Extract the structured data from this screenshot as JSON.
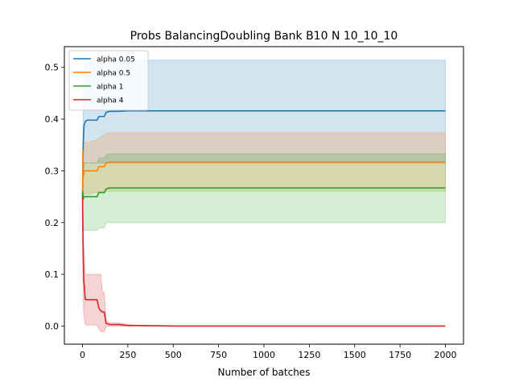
{
  "chart_data": {
    "type": "line",
    "title": "Probs BalancingDoubling Bank B10 N 10_10_10",
    "xlabel": "Number of batches",
    "ylabel": "",
    "xlim": [
      -100,
      2100
    ],
    "ylim": [
      -0.035,
      0.54
    ],
    "x_ticks": [
      0,
      250,
      500,
      750,
      1000,
      1250,
      1500,
      1750,
      2000
    ],
    "x_tick_labels": [
      "0",
      "250",
      "500",
      "750",
      "1000",
      "1250",
      "1500",
      "1750",
      "2000"
    ],
    "y_ticks": [
      0.0,
      0.1,
      0.2,
      0.3,
      0.4,
      0.5
    ],
    "y_tick_labels": [
      "0.0",
      "0.1",
      "0.2",
      "0.3",
      "0.4",
      "0.5"
    ],
    "grid": false,
    "legend_position": "top-left",
    "series": [
      {
        "name": "alpha 0.05",
        "color": "#1f77b4",
        "band_opacity": 0.2,
        "x": [
          0,
          2,
          4,
          6,
          8,
          10,
          15,
          20,
          30,
          40,
          50,
          60,
          70,
          80,
          90,
          100,
          110,
          120,
          130,
          140,
          150,
          200,
          250,
          300,
          500,
          1000,
          2000
        ],
        "y": [
          0.25,
          0.3,
          0.35,
          0.37,
          0.385,
          0.39,
          0.395,
          0.397,
          0.398,
          0.398,
          0.398,
          0.398,
          0.398,
          0.398,
          0.405,
          0.405,
          0.405,
          0.405,
          0.413,
          0.414,
          0.415,
          0.415,
          0.416,
          0.416,
          0.416,
          0.416,
          0.416
        ],
        "lower": [
          0.24,
          0.26,
          0.29,
          0.3,
          0.31,
          0.315,
          0.315,
          0.315,
          0.315,
          0.315,
          0.315,
          0.315,
          0.315,
          0.315,
          0.315,
          0.315,
          0.315,
          0.315,
          0.315,
          0.315,
          0.315,
          0.315,
          0.315,
          0.315,
          0.315,
          0.315,
          0.315
        ],
        "upper": [
          0.26,
          0.36,
          0.41,
          0.45,
          0.48,
          0.5,
          0.505,
          0.508,
          0.51,
          0.512,
          0.513,
          0.513,
          0.513,
          0.513,
          0.513,
          0.513,
          0.513,
          0.513,
          0.513,
          0.514,
          0.514,
          0.514,
          0.514,
          0.514,
          0.514,
          0.514,
          0.514
        ]
      },
      {
        "name": "alpha 0.5",
        "color": "#ff7f0e",
        "band_opacity": 0.2,
        "x": [
          0,
          2,
          4,
          6,
          8,
          10,
          15,
          20,
          30,
          40,
          50,
          60,
          70,
          80,
          90,
          100,
          110,
          120,
          130,
          140,
          150,
          200,
          250,
          300,
          500,
          1000,
          2000
        ],
        "y": [
          0.25,
          0.34,
          0.31,
          0.29,
          0.3,
          0.3,
          0.3,
          0.3,
          0.3,
          0.3,
          0.3,
          0.3,
          0.3,
          0.3,
          0.308,
          0.308,
          0.308,
          0.308,
          0.315,
          0.316,
          0.317,
          0.317,
          0.317,
          0.317,
          0.317,
          0.317,
          0.317
        ],
        "lower": [
          0.24,
          0.28,
          0.27,
          0.255,
          0.255,
          0.255,
          0.255,
          0.255,
          0.255,
          0.255,
          0.258,
          0.258,
          0.258,
          0.258,
          0.26,
          0.26,
          0.26,
          0.26,
          0.26,
          0.26,
          0.26,
          0.26,
          0.26,
          0.26,
          0.26,
          0.26,
          0.26
        ],
        "upper": [
          0.26,
          0.37,
          0.36,
          0.355,
          0.355,
          0.355,
          0.355,
          0.355,
          0.355,
          0.355,
          0.358,
          0.358,
          0.358,
          0.36,
          0.363,
          0.365,
          0.368,
          0.37,
          0.372,
          0.373,
          0.374,
          0.374,
          0.374,
          0.374,
          0.374,
          0.374,
          0.374
        ]
      },
      {
        "name": "alpha 1",
        "color": "#2ca02c",
        "band_opacity": 0.2,
        "x": [
          0,
          2,
          4,
          6,
          8,
          10,
          15,
          20,
          30,
          40,
          50,
          60,
          70,
          80,
          90,
          100,
          110,
          120,
          130,
          140,
          150,
          200,
          250,
          300,
          500,
          1000,
          2000
        ],
        "y": [
          0.25,
          0.26,
          0.245,
          0.25,
          0.25,
          0.25,
          0.25,
          0.25,
          0.25,
          0.25,
          0.25,
          0.25,
          0.25,
          0.25,
          0.258,
          0.258,
          0.258,
          0.258,
          0.265,
          0.266,
          0.267,
          0.267,
          0.267,
          0.267,
          0.267,
          0.267,
          0.267
        ],
        "lower": [
          0.24,
          0.2,
          0.195,
          0.185,
          0.185,
          0.185,
          0.185,
          0.185,
          0.185,
          0.185,
          0.185,
          0.185,
          0.185,
          0.185,
          0.19,
          0.19,
          0.19,
          0.19,
          0.199,
          0.2,
          0.2,
          0.2,
          0.2,
          0.2,
          0.2,
          0.2,
          0.2
        ],
        "upper": [
          0.26,
          0.31,
          0.31,
          0.315,
          0.315,
          0.315,
          0.315,
          0.315,
          0.315,
          0.315,
          0.315,
          0.315,
          0.315,
          0.315,
          0.325,
          0.325,
          0.325,
          0.325,
          0.331,
          0.332,
          0.333,
          0.333,
          0.333,
          0.333,
          0.333,
          0.333,
          0.333
        ]
      },
      {
        "name": "alpha 4",
        "color": "#d62728",
        "band_opacity": 0.2,
        "x": [
          0,
          2,
          4,
          6,
          8,
          10,
          15,
          20,
          30,
          40,
          50,
          60,
          70,
          80,
          90,
          100,
          110,
          120,
          130,
          140,
          150,
          200,
          250,
          300,
          500,
          1000,
          2000
        ],
        "y": [
          0.25,
          0.18,
          0.13,
          0.1,
          0.085,
          0.078,
          0.052,
          0.051,
          0.051,
          0.051,
          0.051,
          0.051,
          0.051,
          0.051,
          0.035,
          0.03,
          0.027,
          0.027,
          0.005,
          0.004,
          0.003,
          0.003,
          0.001,
          0.001,
          0.0,
          0.0,
          0.0
        ],
        "lower": [
          0.24,
          0.1,
          0.05,
          0.03,
          0.02,
          0.015,
          0.003,
          0.002,
          0.002,
          0.002,
          0.002,
          0.002,
          0.002,
          0.002,
          -0.005,
          -0.01,
          -0.011,
          -0.011,
          -0.001,
          0.0,
          0.0,
          0.0,
          0.0,
          0.0,
          0.0,
          0.0,
          0.0
        ],
        "upper": [
          0.26,
          0.26,
          0.21,
          0.17,
          0.15,
          0.14,
          0.1,
          0.1,
          0.1,
          0.1,
          0.1,
          0.1,
          0.1,
          0.1,
          0.1,
          0.1,
          0.065,
          0.065,
          0.012,
          0.008,
          0.006,
          0.006,
          0.003,
          0.002,
          0.001,
          0.0,
          0.0
        ]
      }
    ]
  }
}
